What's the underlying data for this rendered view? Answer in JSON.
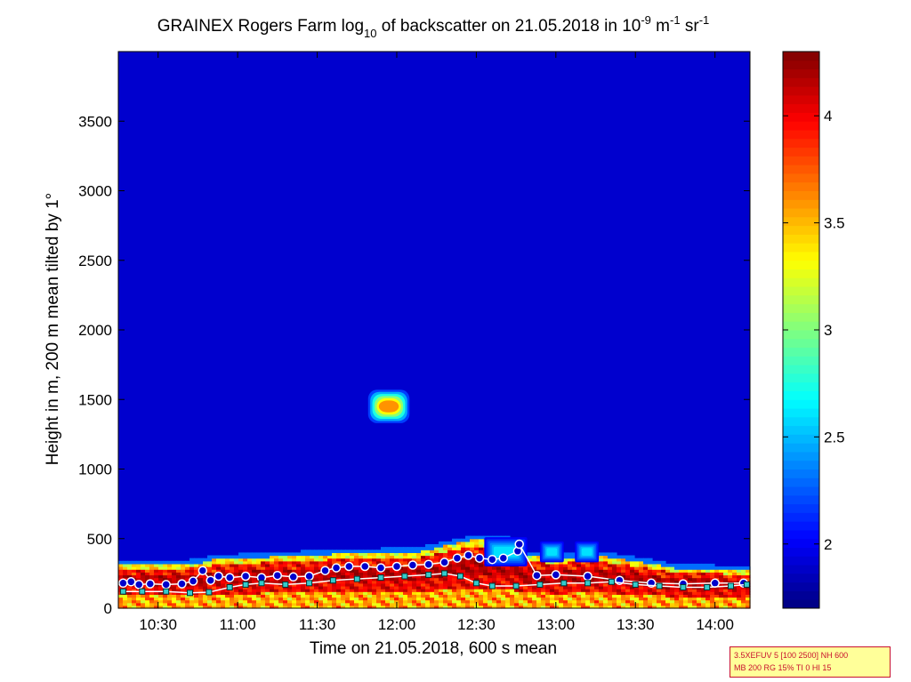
{
  "chart_data": {
    "type": "heatmap",
    "title": {
      "prefix": "GRAINEX Rogers Farm log",
      "sub": "10",
      "middle": " of backscatter on 21.05.2018 in 10",
      "sup1": "-9",
      "unit1": " m",
      "sup2": "-1",
      "unit2": " sr",
      "sup3": "-1"
    },
    "xlabel": "Time on 21.05.2018, 600 s mean",
    "ylabel": "Height in m, 200 m mean tilted by 1°",
    "x_unit": "hours of day",
    "xlim": [
      10.25,
      14.22
    ],
    "ylim": [
      0,
      4000
    ],
    "xticks": [
      {
        "value": 10.5,
        "label": "10:30"
      },
      {
        "value": 11.0,
        "label": "11:00"
      },
      {
        "value": 11.5,
        "label": "11:30"
      },
      {
        "value": 12.0,
        "label": "12:00"
      },
      {
        "value": 12.5,
        "label": "12:30"
      },
      {
        "value": 13.0,
        "label": "13:00"
      },
      {
        "value": 13.5,
        "label": "13:30"
      },
      {
        "value": 14.0,
        "label": "14:00"
      }
    ],
    "yticks": [
      {
        "value": 0,
        "label": "0"
      },
      {
        "value": 500,
        "label": "500"
      },
      {
        "value": 1000,
        "label": "1000"
      },
      {
        "value": 1500,
        "label": "1500"
      },
      {
        "value": 2000,
        "label": "2000"
      },
      {
        "value": 2500,
        "label": "2500"
      },
      {
        "value": 3000,
        "label": "3000"
      },
      {
        "value": 3500,
        "label": "3500"
      }
    ],
    "colorbar": {
      "colormap": "jet",
      "range": [
        1.7,
        4.3
      ],
      "ticks": [
        {
          "value": 2,
          "label": "2"
        },
        {
          "value": 2.5,
          "label": "2.5"
        },
        {
          "value": 3,
          "label": "3"
        },
        {
          "value": 3.5,
          "label": "3.5"
        },
        {
          "value": 4,
          "label": "4"
        }
      ]
    },
    "background_level": 1.9,
    "boundary_layer_top": [
      [
        10.25,
        320
      ],
      [
        10.6,
        310
      ],
      [
        10.78,
        330
      ],
      [
        10.85,
        350
      ],
      [
        11.0,
        360
      ],
      [
        11.3,
        375
      ],
      [
        11.6,
        390
      ],
      [
        11.9,
        400
      ],
      [
        12.15,
        410
      ],
      [
        12.3,
        450
      ],
      [
        12.5,
        500
      ],
      [
        12.7,
        490
      ],
      [
        12.8,
        380
      ],
      [
        13.0,
        360
      ],
      [
        13.25,
        380
      ],
      [
        13.5,
        340
      ],
      [
        13.75,
        290
      ],
      [
        14.0,
        280
      ],
      [
        14.22,
        270
      ]
    ],
    "cloud_features": [
      {
        "x": [
          11.82,
          12.08
        ],
        "y": [
          1330,
          1570
        ],
        "peak": 3.6
      },
      {
        "x": [
          12.55,
          12.82
        ],
        "y": [
          300,
          510
        ],
        "peak": 2.6
      },
      {
        "x": [
          12.9,
          13.05
        ],
        "y": [
          330,
          480
        ],
        "peak": 2.6
      },
      {
        "x": [
          13.12,
          13.27
        ],
        "y": [
          330,
          480
        ],
        "peak": 2.6
      }
    ],
    "layer_height_series": [
      {
        "marker": "circle",
        "color": "#0000cc",
        "points": [
          [
            10.28,
            180
          ],
          [
            10.33,
            190
          ],
          [
            10.38,
            170
          ],
          [
            10.45,
            175
          ],
          [
            10.55,
            170
          ],
          [
            10.65,
            175
          ],
          [
            10.72,
            195
          ],
          [
            10.78,
            270
          ],
          [
            10.83,
            200
          ],
          [
            10.88,
            230
          ],
          [
            10.95,
            220
          ],
          [
            11.05,
            230
          ],
          [
            11.15,
            220
          ],
          [
            11.25,
            235
          ],
          [
            11.35,
            225
          ],
          [
            11.45,
            230
          ],
          [
            11.55,
            270
          ],
          [
            11.62,
            290
          ],
          [
            11.7,
            300
          ],
          [
            11.8,
            300
          ],
          [
            11.9,
            290
          ],
          [
            12.0,
            300
          ],
          [
            12.1,
            310
          ],
          [
            12.2,
            315
          ],
          [
            12.3,
            330
          ],
          [
            12.38,
            360
          ],
          [
            12.45,
            380
          ],
          [
            12.52,
            360
          ],
          [
            12.6,
            350
          ],
          [
            12.67,
            360
          ],
          [
            12.76,
            410
          ],
          [
            12.77,
            460
          ],
          [
            12.88,
            235
          ],
          [
            13.0,
            240
          ],
          [
            13.2,
            230
          ],
          [
            13.4,
            200
          ],
          [
            13.6,
            180
          ],
          [
            13.8,
            175
          ],
          [
            14.0,
            180
          ],
          [
            14.18,
            180
          ]
        ]
      },
      {
        "marker": "square",
        "color": "#33cccc",
        "points": [
          [
            10.28,
            120
          ],
          [
            10.4,
            120
          ],
          [
            10.55,
            120
          ],
          [
            10.7,
            110
          ],
          [
            10.82,
            115
          ],
          [
            10.95,
            150
          ],
          [
            11.05,
            170
          ],
          [
            11.15,
            180
          ],
          [
            11.3,
            170
          ],
          [
            11.45,
            180
          ],
          [
            11.6,
            200
          ],
          [
            11.75,
            210
          ],
          [
            11.9,
            220
          ],
          [
            12.05,
            230
          ],
          [
            12.2,
            240
          ],
          [
            12.3,
            250
          ],
          [
            12.4,
            230
          ],
          [
            12.5,
            180
          ],
          [
            12.6,
            160
          ],
          [
            12.75,
            160
          ],
          [
            12.9,
            170
          ],
          [
            13.05,
            180
          ],
          [
            13.2,
            180
          ],
          [
            13.35,
            190
          ],
          [
            13.5,
            170
          ],
          [
            13.65,
            160
          ],
          [
            13.8,
            150
          ],
          [
            13.95,
            150
          ],
          [
            14.1,
            160
          ],
          [
            14.2,
            170
          ]
        ]
      }
    ],
    "grid": false,
    "legend": "none"
  },
  "parameters_box": {
    "line1": "3.5XEFUV 5 [100 2500] NH 600",
    "line2": "MB 200 RG 15% TI 0 HI 15"
  }
}
